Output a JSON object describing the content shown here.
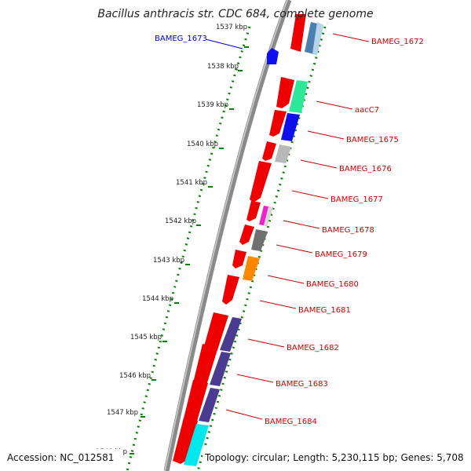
{
  "title": "Bacillus anthracis str. CDC 684, complete genome",
  "footer": {
    "accession": "Accession: NC_012581",
    "summary": "Topology: circular; Length: 5,230,115 bp; Genes: 5,708"
  },
  "colors": {
    "backbone": "#8a8a8a",
    "ruler": "#008800",
    "forward_gene": "#ee0000",
    "label_red": "#cc0000",
    "label_blue": "#0000cc"
  },
  "scale_labels": [
    "1537 kbp",
    "1538 kbp",
    "1539 kbp",
    "1540 kbp",
    "1541 kbp",
    "1542 kbp",
    "1543 kbp",
    "1544 kbp",
    "1545 kbp",
    "1546 kbp",
    "1547 kbp",
    "1548 kbp"
  ],
  "gene_labels": {
    "left": [
      {
        "id": "BAMEG_1673",
        "color": "#0000cc"
      }
    ],
    "right": [
      {
        "id": "BAMEG_1672",
        "color": "#cc0000"
      },
      {
        "id": "aacC7",
        "color": "#cc0000"
      },
      {
        "id": "BAMEG_1675",
        "color": "#cc0000"
      },
      {
        "id": "BAMEG_1676",
        "color": "#cc0000"
      },
      {
        "id": "BAMEG_1677",
        "color": "#cc0000"
      },
      {
        "id": "BAMEG_1678",
        "color": "#cc0000"
      },
      {
        "id": "BAMEG_1679",
        "color": "#cc0000"
      },
      {
        "id": "BAMEG_1680",
        "color": "#cc0000"
      },
      {
        "id": "BAMEG_1681",
        "color": "#cc0000"
      },
      {
        "id": "BAMEG_1682",
        "color": "#cc0000"
      },
      {
        "id": "BAMEG_1683",
        "color": "#cc0000"
      },
      {
        "id": "BAMEG_1684",
        "color": "#cc0000"
      }
    ]
  },
  "feature_colors": [
    "#4a7fb0",
    "#2ee89a",
    "#1010ee",
    "#b8b8b8",
    "#ee22cc",
    "#707070",
    "#ff8800",
    "#4a3a90",
    "#4a3a90",
    "#4a3a90",
    "#00e8ee"
  ]
}
